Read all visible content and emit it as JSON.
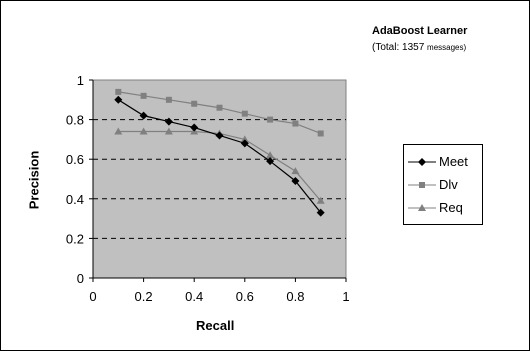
{
  "chart_data": {
    "type": "line",
    "title": "AdaBoost Learner",
    "subtitle_prefix": "(Total: 1357 ",
    "subtitle_suffix": "messages)",
    "xlabel": "Recall",
    "ylabel": "Precision",
    "xlim": [
      0,
      1
    ],
    "ylim": [
      0,
      1
    ],
    "xticks": [
      "0",
      "0.2",
      "0.4",
      "0.6",
      "0.8",
      "1"
    ],
    "yticks": [
      "0",
      "0.2",
      "0.4",
      "0.6",
      "0.8",
      "1"
    ],
    "grid": "horizontal dashed",
    "legend_placement": "right",
    "plot_background": "#c0c0c0",
    "series": [
      {
        "name": "Meet",
        "marker": "diamond",
        "color": "#000000",
        "x": [
          0.1,
          0.2,
          0.3,
          0.4,
          0.5,
          0.6,
          0.7,
          0.8,
          0.9
        ],
        "y": [
          0.9,
          0.82,
          0.79,
          0.76,
          0.72,
          0.68,
          0.59,
          0.49,
          0.33
        ]
      },
      {
        "name": "Dlv",
        "marker": "square",
        "color": "#808080",
        "x": [
          0.1,
          0.2,
          0.3,
          0.4,
          0.5,
          0.6,
          0.7,
          0.8,
          0.9
        ],
        "y": [
          0.94,
          0.92,
          0.9,
          0.88,
          0.86,
          0.83,
          0.8,
          0.78,
          0.73
        ]
      },
      {
        "name": "Req",
        "marker": "triangle",
        "color": "#808080",
        "x": [
          0.1,
          0.2,
          0.3,
          0.4,
          0.5,
          0.6,
          0.7,
          0.8,
          0.9
        ],
        "y": [
          0.74,
          0.74,
          0.74,
          0.74,
          0.73,
          0.7,
          0.62,
          0.54,
          0.39
        ]
      }
    ]
  }
}
